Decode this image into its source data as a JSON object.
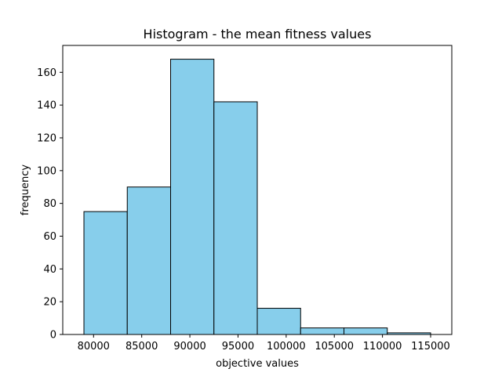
{
  "chart_data": {
    "type": "bar",
    "title": "Histogram - the mean fitness values",
    "xlabel": "objective values",
    "ylabel": "frequency",
    "bin_edges": [
      79000,
      83500,
      88000,
      92500,
      97000,
      101500,
      106000,
      110500,
      115000
    ],
    "values": [
      75,
      90,
      168,
      142,
      16,
      4,
      4,
      1
    ],
    "xlim": [
      76800,
      117200
    ],
    "ylim": [
      0,
      176.4
    ],
    "xticks": [
      80000,
      85000,
      90000,
      95000,
      100000,
      105000,
      110000,
      115000
    ],
    "yticks": [
      0,
      20,
      40,
      60,
      80,
      100,
      120,
      140,
      160
    ],
    "grid": false,
    "colors": {
      "bar_fill": "#87CEEB",
      "bar_edge": "#000000"
    }
  }
}
